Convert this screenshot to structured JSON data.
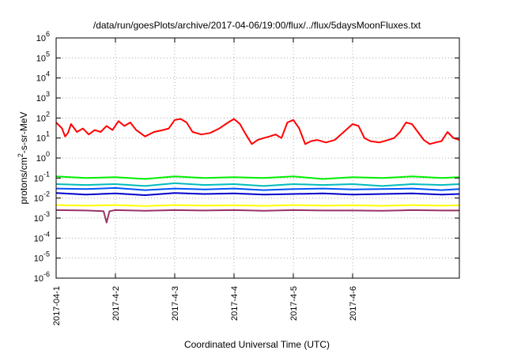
{
  "chart_data": {
    "type": "line",
    "title": "/data/run/goesPlots/archive/2017-04-06/19:00/flux/../flux/5daysMoonFluxes.txt",
    "xlabel": "Coordinated Universal Time (UTC)",
    "ylabel_main": "protons/cm",
    "ylabel_sup": "2",
    "ylabel_rest": "-s-sr-MeV",
    "yscale": "log",
    "ylim": [
      1e-06,
      1000000.0
    ],
    "xlim": [
      0,
      6.8
    ],
    "x_unit": "days after 2017-04-01 00:00 UTC",
    "grid": true,
    "x_ticks": [
      {
        "value": 0,
        "label": "2017-04-1"
      },
      {
        "value": 1,
        "label": "2017-4-2"
      },
      {
        "value": 2,
        "label": "2017-4-3"
      },
      {
        "value": 3,
        "label": "2017-4-4"
      },
      {
        "value": 4,
        "label": "2017-4-5"
      },
      {
        "value": 5,
        "label": "2017-4-6"
      }
    ],
    "y_ticks": [
      {
        "exp": -6,
        "label_base": "10",
        "label_exp": "-6"
      },
      {
        "exp": -5,
        "label_base": "10",
        "label_exp": "-5"
      },
      {
        "exp": -4,
        "label_base": "10",
        "label_exp": "-4"
      },
      {
        "exp": -3,
        "label_base": "10",
        "label_exp": "-3"
      },
      {
        "exp": -2,
        "label_base": "10",
        "label_exp": "-2"
      },
      {
        "exp": -1,
        "label_base": "10",
        "label_exp": "-1"
      },
      {
        "exp": 0,
        "label_base": "10",
        "label_exp": "0"
      },
      {
        "exp": 1,
        "label_base": "10",
        "label_exp": "1"
      },
      {
        "exp": 2,
        "label_base": "10",
        "label_exp": "2"
      },
      {
        "exp": 3,
        "label_base": "10",
        "label_exp": "3"
      },
      {
        "exp": 4,
        "label_base": "10",
        "label_exp": "4"
      },
      {
        "exp": 5,
        "label_base": "10",
        "label_exp": "5"
      },
      {
        "exp": 6,
        "label_base": "10",
        "label_exp": "6"
      }
    ],
    "series": [
      {
        "color": "#ff0000",
        "x": [
          0,
          0.1,
          0.15,
          0.2,
          0.25,
          0.35,
          0.45,
          0.55,
          0.65,
          0.75,
          0.85,
          0.95,
          1.05,
          1.15,
          1.25,
          1.35,
          1.5,
          1.65,
          1.8,
          1.9,
          2.0,
          2.1,
          2.2,
          2.3,
          2.45,
          2.6,
          2.75,
          2.9,
          3.0,
          3.1,
          3.2,
          3.3,
          3.4,
          3.5,
          3.6,
          3.7,
          3.8,
          3.9,
          4.0,
          4.1,
          4.2,
          4.3,
          4.4,
          4.55,
          4.7,
          4.85,
          5.0,
          5.1,
          5.2,
          5.3,
          5.45,
          5.6,
          5.7,
          5.8,
          5.9,
          6.0,
          6.1,
          6.2,
          6.3,
          6.4,
          6.5,
          6.6,
          6.7,
          6.8
        ],
        "y": [
          60,
          30,
          12,
          18,
          50,
          20,
          30,
          15,
          25,
          20,
          40,
          25,
          70,
          40,
          60,
          25,
          12,
          20,
          25,
          30,
          80,
          90,
          60,
          20,
          15,
          18,
          30,
          60,
          90,
          50,
          15,
          5,
          8,
          10,
          12,
          15,
          10,
          60,
          80,
          30,
          5,
          7,
          8,
          6,
          8,
          20,
          50,
          40,
          10,
          7,
          6,
          8,
          10,
          20,
          60,
          50,
          20,
          8,
          5,
          6,
          7,
          20,
          10,
          8
        ]
      },
      {
        "color": "#00ee00",
        "x": [
          0,
          0.5,
          1,
          1.5,
          2,
          2.5,
          3,
          3.5,
          4,
          4.5,
          5,
          5.5,
          6,
          6.5,
          6.8
        ],
        "y": [
          0.12,
          0.1,
          0.11,
          0.09,
          0.12,
          0.1,
          0.11,
          0.1,
          0.12,
          0.09,
          0.11,
          0.1,
          0.12,
          0.1,
          0.11
        ]
      },
      {
        "color": "#00bbbb",
        "x": [
          0,
          0.5,
          1,
          1.5,
          2,
          2.5,
          3,
          3.5,
          4,
          4.5,
          5,
          5.5,
          6,
          6.5,
          6.8
        ],
        "y": [
          0.05,
          0.045,
          0.05,
          0.04,
          0.055,
          0.045,
          0.05,
          0.04,
          0.05,
          0.045,
          0.05,
          0.04,
          0.05,
          0.045,
          0.05
        ]
      },
      {
        "color": "#0055ff",
        "x": [
          0,
          0.5,
          1,
          1.5,
          2,
          2.5,
          3,
          3.5,
          4,
          4.5,
          5,
          5.5,
          6,
          6.5,
          6.8
        ],
        "y": [
          0.03,
          0.028,
          0.032,
          0.025,
          0.03,
          0.027,
          0.03,
          0.025,
          0.028,
          0.03,
          0.027,
          0.028,
          0.03,
          0.025,
          0.028
        ]
      },
      {
        "color": "#0000cc",
        "x": [
          0,
          0.5,
          1,
          1.5,
          2,
          2.5,
          3,
          3.5,
          4,
          4.5,
          5,
          5.5,
          6,
          6.5,
          6.8
        ],
        "y": [
          0.018,
          0.015,
          0.017,
          0.014,
          0.018,
          0.016,
          0.017,
          0.015,
          0.016,
          0.017,
          0.015,
          0.016,
          0.017,
          0.015,
          0.016
        ]
      },
      {
        "color": "#ffff00",
        "x": [
          0,
          0.5,
          1,
          1.5,
          2,
          2.5,
          3,
          3.5,
          4,
          4.5,
          5,
          5.5,
          6,
          6.5,
          6.8
        ],
        "y": [
          0.0045,
          0.0042,
          0.0045,
          0.004,
          0.0045,
          0.0042,
          0.0044,
          0.0041,
          0.0045,
          0.0042,
          0.0044,
          0.0041,
          0.0045,
          0.0042,
          0.0044
        ]
      },
      {
        "color": "#993366",
        "x": [
          0,
          0.5,
          0.8,
          0.85,
          0.9,
          1,
          1.5,
          2,
          2.5,
          3,
          3.5,
          4,
          4.5,
          5,
          5.5,
          6,
          6.5,
          6.8
        ],
        "y": [
          0.0025,
          0.0024,
          0.0022,
          0.0006,
          0.0022,
          0.0025,
          0.0023,
          0.0025,
          0.0024,
          0.0025,
          0.0023,
          0.0025,
          0.0024,
          0.0024,
          0.0023,
          0.0025,
          0.0024,
          0.0024
        ]
      }
    ]
  }
}
